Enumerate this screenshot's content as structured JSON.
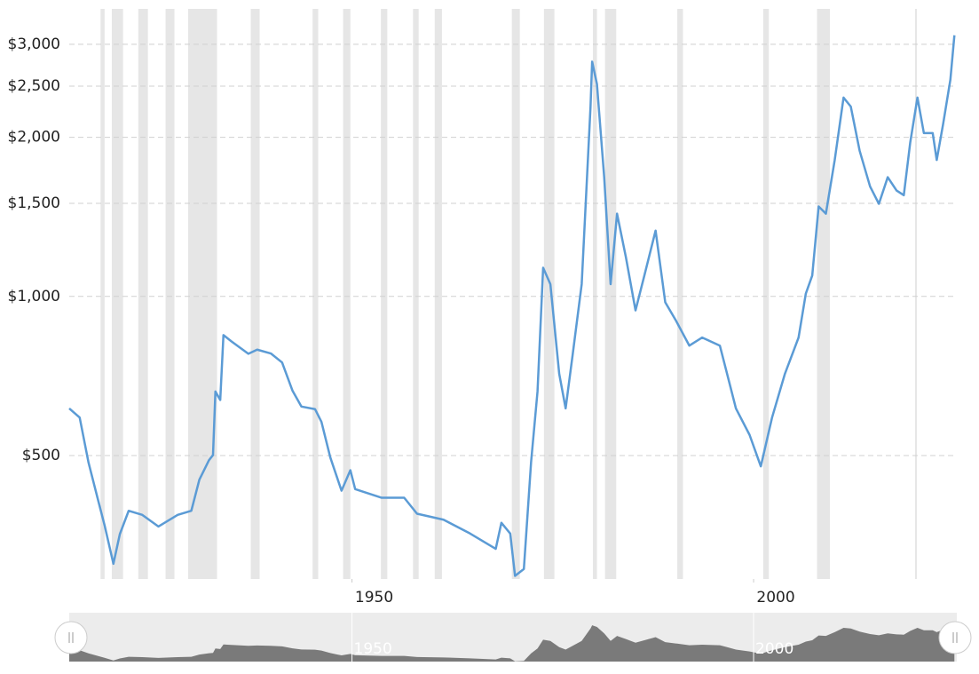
{
  "chart_data": {
    "type": "line",
    "x": [
      1914.8,
      1916.1,
      1917.2,
      1918.3,
      1919.2,
      1920.3,
      1921.1,
      1922.2,
      1923.9,
      1925.9,
      1928.3,
      1930,
      1931,
      1932.2,
      1932.7,
      1933,
      1933.6,
      1934,
      1935,
      1937.1,
      1938.2,
      1939.9,
      1941.3,
      1942.6,
      1943.7,
      1945.4,
      1946.2,
      1947.3,
      1948.7,
      1949.8,
      1950.4,
      1953.7,
      1956.5,
      1958.1,
      1961.4,
      1964.7,
      1967.9,
      1968.6,
      1969.7,
      1970.3,
      1971.4,
      1972.3,
      1973.1,
      1973.8,
      1974.7,
      1975.8,
      1976.6,
      1977.5,
      1978.6,
      1979.7,
      1979.9,
      1980.5,
      1981.4,
      1982.2,
      1983,
      1984.1,
      1985.3,
      1986.4,
      1987.8,
      1989,
      1990.3,
      1992,
      1993.6,
      1995.8,
      1996.7,
      1997.8,
      1999.5,
      2000.9,
      2002.3,
      2003.9,
      2005.6,
      2006.5,
      2007.3,
      2008.1,
      2009,
      2010.1,
      2011.2,
      2012.1,
      2013.2,
      2014.5,
      2015.6,
      2016.7,
      2017.8,
      2018.7,
      2019.5,
      2020.4,
      2021.2,
      2022.3,
      2022.8,
      2023.6,
      2024.5,
      2025
    ],
    "values": [
      614,
      590,
      485,
      417,
      369,
      312,
      355,
      393,
      386,
      367,
      386,
      393,
      450,
      490,
      501,
      661,
      637,
      845,
      822,
      779,
      793,
      780,
      750,
      663,
      619,
      612,
      579,
      496,
      429,
      469,
      432,
      416,
      416,
      388,
      378,
      356,
      333,
      373,
      356,
      296,
      305,
      486,
      661,
      1133,
      1055,
      714,
      614,
      781,
      1055,
      2287,
      2781,
      2521,
      1681,
      1055,
      1434,
      1187,
      941,
      1095,
      1332,
      975,
      902,
      807,
      836,
      807,
      714,
      614,
      547,
      477,
      590,
      714,
      836,
      1012,
      1095,
      1480,
      1434,
      1812,
      2378,
      2287,
      1887,
      1615,
      1497,
      1681,
      1586,
      1554,
      1955,
      2378,
      2037,
      2037,
      1812,
      2121,
      2571,
      3120
    ],
    "color": "#5b9bd5",
    "recessions": [
      [
        1918.7,
        1919.2
      ],
      [
        1920.1,
        1921.5
      ],
      [
        1923.4,
        1924.6
      ],
      [
        1926.8,
        1927.9
      ],
      [
        1929.6,
        1933.2
      ],
      [
        1937.4,
        1938.5
      ],
      [
        1945.1,
        1945.8
      ],
      [
        1948.9,
        1949.8
      ],
      [
        1953.6,
        1954.4
      ],
      [
        1957.6,
        1958.3
      ],
      [
        1960.3,
        1961.2
      ],
      [
        1969.9,
        1970.9
      ],
      [
        1973.9,
        1975.2
      ],
      [
        1980.0,
        1980.5
      ],
      [
        1981.5,
        1982.9
      ],
      [
        1990.5,
        1991.2
      ],
      [
        2001.2,
        2001.9
      ],
      [
        2007.9,
        2009.5
      ],
      [
        2020.1,
        2020.3
      ]
    ],
    "recession_color": "#e6e6e6",
    "xlim": [
      1914.8,
      2025.3
    ],
    "xticks": [
      1950,
      2000
    ],
    "ylim": [
      292,
      3500
    ],
    "log_scale": true,
    "grid": true,
    "yticks": [
      {
        "value": 500,
        "label": "$500"
      },
      {
        "value": 1000,
        "label": "$1,000"
      },
      {
        "value": 1500,
        "label": "$1,500"
      },
      {
        "value": 2000,
        "label": "$2,000"
      },
      {
        "value": 2500,
        "label": "$2,500"
      },
      {
        "value": 3000,
        "label": "$3,000"
      }
    ]
  }
}
